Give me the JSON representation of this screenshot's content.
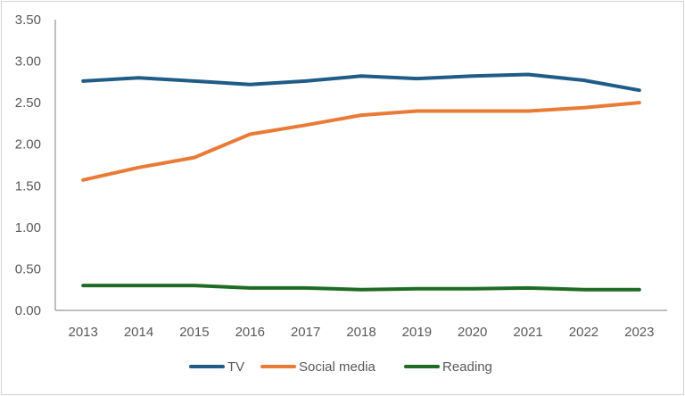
{
  "chart_data": {
    "type": "line",
    "title": "",
    "xlabel": "",
    "ylabel": "",
    "categories": [
      "2013",
      "2014",
      "2015",
      "2016",
      "2017",
      "2018",
      "2019",
      "2020",
      "2021",
      "2022",
      "2023"
    ],
    "ylim": [
      0,
      3.5
    ],
    "yticks": [
      "0.00",
      "0.50",
      "1.00",
      "1.50",
      "2.00",
      "2.50",
      "3.00",
      "3.50"
    ],
    "grid": false,
    "legend_position": "bottom",
    "series": [
      {
        "name": "TV",
        "color": "#1F5C86",
        "values": [
          2.76,
          2.8,
          2.76,
          2.72,
          2.76,
          2.82,
          2.79,
          2.82,
          2.84,
          2.77,
          2.65
        ]
      },
      {
        "name": "Social media",
        "color": "#E97B37",
        "values": [
          1.57,
          1.72,
          1.84,
          2.12,
          2.23,
          2.35,
          2.4,
          2.4,
          2.4,
          2.44,
          2.5
        ]
      },
      {
        "name": "Reading",
        "color": "#1F6B23",
        "values": [
          0.3,
          0.3,
          0.3,
          0.27,
          0.27,
          0.25,
          0.26,
          0.26,
          0.27,
          0.25,
          0.25
        ]
      }
    ]
  }
}
